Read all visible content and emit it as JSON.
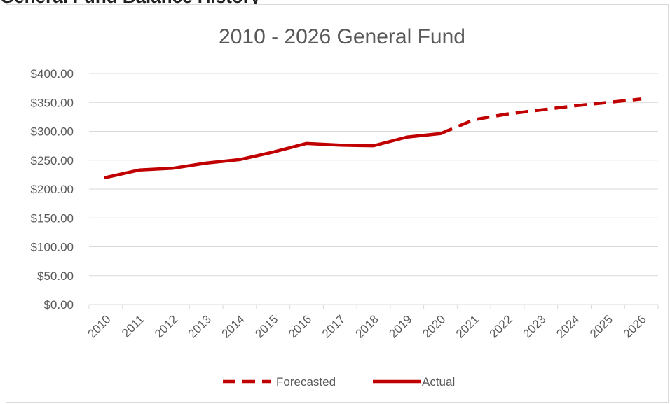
{
  "header_fragment": "General Fund Balance History",
  "chart_data": {
    "type": "line",
    "title": "2010 - 2026 General Fund",
    "xlabel": "",
    "ylabel": "",
    "categories": [
      "2010",
      "2011",
      "2012",
      "2013",
      "2014",
      "2015",
      "2016",
      "2017",
      "2018",
      "2019",
      "2020",
      "2021",
      "2022",
      "2023",
      "2024",
      "2025",
      "2026"
    ],
    "ylim": [
      0,
      400
    ],
    "yticks": [
      0,
      50,
      100,
      150,
      200,
      250,
      300,
      350,
      400
    ],
    "ytick_labels": [
      "$0.00",
      "$50.00",
      "$100.00",
      "$150.00",
      "$200.00",
      "$250.00",
      "$300.00",
      "$350.00",
      "$400.00"
    ],
    "grid": true,
    "legend_position": "bottom",
    "series": [
      {
        "name": "Forecasted",
        "style": "dashed",
        "color": "#c00000",
        "values": [
          null,
          null,
          null,
          null,
          null,
          null,
          null,
          null,
          null,
          null,
          296,
          320,
          330,
          337,
          344,
          350,
          356
        ]
      },
      {
        "name": "Actual",
        "style": "solid",
        "color": "#c00000",
        "values": [
          220,
          233,
          236,
          245,
          251,
          264,
          279,
          276,
          275,
          290,
          296,
          null,
          null,
          null,
          null,
          null,
          null
        ]
      }
    ]
  }
}
